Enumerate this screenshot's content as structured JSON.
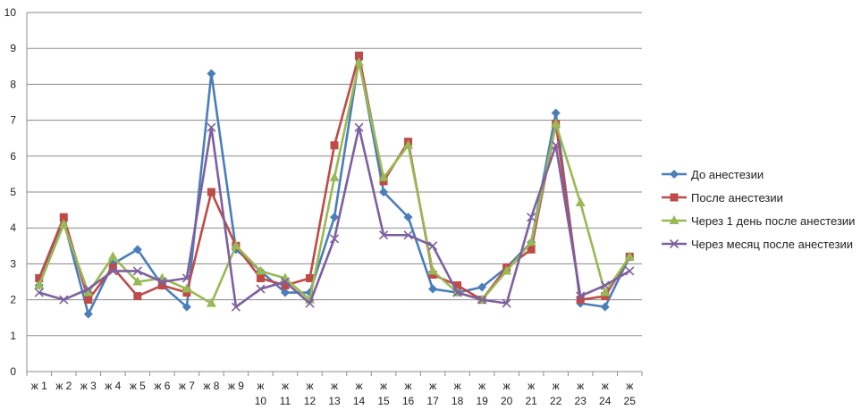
{
  "chart_data": {
    "type": "line",
    "categories": [
      [
        "ж 1"
      ],
      [
        "ж 2"
      ],
      [
        "ж 3"
      ],
      [
        "ж 4"
      ],
      [
        "ж 5"
      ],
      [
        "ж 6"
      ],
      [
        "ж 7"
      ],
      [
        "ж 8"
      ],
      [
        "ж 9"
      ],
      [
        "ж",
        "10"
      ],
      [
        "ж",
        "11"
      ],
      [
        "ж",
        "12"
      ],
      [
        "ж",
        "13"
      ],
      [
        "ж",
        "14"
      ],
      [
        "ж",
        "15"
      ],
      [
        "ж",
        "16"
      ],
      [
        "ж",
        "17"
      ],
      [
        "ж",
        "18"
      ],
      [
        "ж",
        "19"
      ],
      [
        "ж",
        "20"
      ],
      [
        "ж",
        "21"
      ],
      [
        "ж",
        "22"
      ],
      [
        "ж",
        "23"
      ],
      [
        "ж",
        "24"
      ],
      [
        "ж",
        "25"
      ]
    ],
    "ylim": [
      0,
      10
    ],
    "yticks": [
      "0",
      "1",
      "2",
      "3",
      "4",
      "5",
      "6",
      "7",
      "8",
      "9",
      "10"
    ],
    "grid": true,
    "legend_position": "right",
    "series": [
      {
        "name": "До анестезии",
        "color": "#4a7ebb",
        "marker": "diamond",
        "values": [
          2.4,
          4.2,
          1.6,
          3.0,
          3.4,
          2.4,
          1.8,
          8.3,
          3.4,
          2.8,
          2.2,
          2.2,
          4.3,
          8.7,
          5.0,
          4.3,
          2.3,
          2.2,
          2.35,
          2.9,
          3.6,
          7.2,
          1.9,
          1.8,
          3.2
        ]
      },
      {
        "name": "После анестезии",
        "color": "#be4b48",
        "marker": "square",
        "values": [
          2.6,
          4.3,
          2.0,
          2.9,
          2.1,
          2.4,
          2.2,
          5.0,
          3.5,
          2.6,
          2.4,
          2.6,
          6.3,
          8.8,
          5.3,
          6.4,
          2.7,
          2.4,
          2.0,
          2.9,
          3.4,
          6.9,
          2.0,
          2.1,
          3.2
        ]
      },
      {
        "name": "Через 1 день после анестезии",
        "color": "#98b954",
        "marker": "triangle",
        "values": [
          2.4,
          4.1,
          2.2,
          3.2,
          2.5,
          2.6,
          2.3,
          1.9,
          3.5,
          2.8,
          2.6,
          2.0,
          5.4,
          8.6,
          5.4,
          6.3,
          2.8,
          2.2,
          2.0,
          2.8,
          3.6,
          6.9,
          4.7,
          2.2,
          3.2
        ]
      },
      {
        "name": "Через месяц после анестезии",
        "color": "#7d60a0",
        "marker": "x",
        "values": [
          2.2,
          2.0,
          2.3,
          2.8,
          2.8,
          2.5,
          2.6,
          6.8,
          1.8,
          2.3,
          2.5,
          1.9,
          3.7,
          6.8,
          3.8,
          3.8,
          3.5,
          2.2,
          2.0,
          1.9,
          4.3,
          6.3,
          2.1,
          2.4,
          2.8
        ]
      }
    ]
  }
}
